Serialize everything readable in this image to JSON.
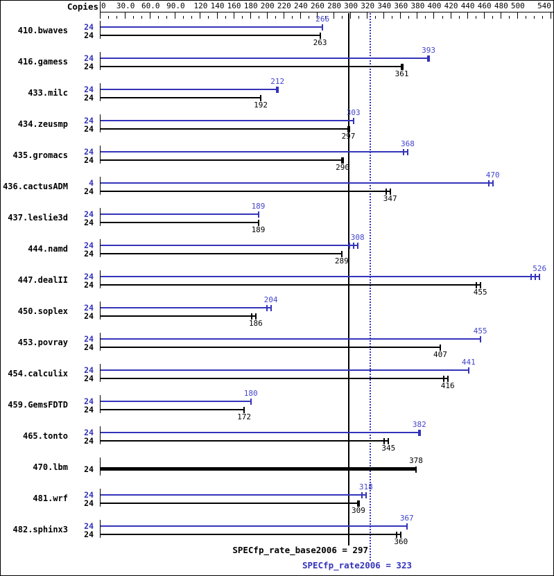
{
  "header": {
    "copies_label": "Copies"
  },
  "colors": {
    "peak": "#3333bb",
    "peak_text": "#4444cc",
    "base": "#000000",
    "background": "#ffffff"
  },
  "chart_data": {
    "type": "bar",
    "orientation": "horizontal",
    "title": "",
    "xlabel": "",
    "ylabel": "Copies",
    "x_axis": {
      "range": [
        0,
        543
      ],
      "minor_step": 10,
      "major_ticks": [
        30,
        60,
        90,
        120,
        140,
        160,
        180,
        200,
        220,
        240,
        260,
        280,
        300,
        320,
        340,
        360,
        380,
        400,
        420,
        440,
        460,
        480,
        500,
        540
      ],
      "labels": [
        {
          "v": 0,
          "t": "0"
        },
        {
          "v": 30,
          "t": "30.0"
        },
        {
          "v": 60,
          "t": "60.0"
        },
        {
          "v": 90,
          "t": "90.0"
        },
        {
          "v": 120,
          "t": "120"
        },
        {
          "v": 140,
          "t": "140"
        },
        {
          "v": 160,
          "t": "160"
        },
        {
          "v": 180,
          "t": "180"
        },
        {
          "v": 200,
          "t": "200"
        },
        {
          "v": 220,
          "t": "220"
        },
        {
          "v": 240,
          "t": "240"
        },
        {
          "v": 260,
          "t": "260"
        },
        {
          "v": 280,
          "t": "280"
        },
        {
          "v": 300,
          "t": "300"
        },
        {
          "v": 320,
          "t": "320"
        },
        {
          "v": 340,
          "t": "340"
        },
        {
          "v": 360,
          "t": "360"
        },
        {
          "v": 380,
          "t": "380"
        },
        {
          "v": 400,
          "t": "400"
        },
        {
          "v": 420,
          "t": "420"
        },
        {
          "v": 440,
          "t": "440"
        },
        {
          "v": 460,
          "t": "460"
        },
        {
          "v": 480,
          "t": "480"
        },
        {
          "v": 500,
          "t": "500"
        },
        {
          "v": 540,
          "t": "540"
        }
      ]
    },
    "series": [
      {
        "key": "peak",
        "color": "blue"
      },
      {
        "key": "base",
        "color": "black"
      }
    ],
    "benchmarks": [
      {
        "name": "410.bwaves",
        "peak": {
          "copies": 24,
          "value": 266,
          "marks": 1
        },
        "base": {
          "copies": 24,
          "value": 263,
          "marks": 1
        }
      },
      {
        "name": "416.gamess",
        "peak": {
          "copies": 24,
          "value": 393,
          "marks": 1,
          "thick": true
        },
        "base": {
          "copies": 24,
          "value": 361,
          "marks": 1,
          "thick": true
        }
      },
      {
        "name": "433.milc",
        "peak": {
          "copies": 24,
          "value": 212,
          "marks": 1,
          "thick": true
        },
        "base": {
          "copies": 24,
          "value": 192,
          "marks": 1
        }
      },
      {
        "name": "434.zeusmp",
        "peak": {
          "copies": 24,
          "value": 303,
          "marks": 1
        },
        "base": {
          "copies": 24,
          "value": 297,
          "marks": 1,
          "thick": true
        }
      },
      {
        "name": "435.gromacs",
        "peak": {
          "copies": 24,
          "value": 368,
          "marks": 2
        },
        "base": {
          "copies": 24,
          "value": 290,
          "marks": 1,
          "thick": true
        }
      },
      {
        "name": "436.cactusADM",
        "peak": {
          "copies": 4,
          "value": 470,
          "marks": 2
        },
        "base": {
          "copies": 24,
          "value": 347,
          "marks": 2
        }
      },
      {
        "name": "437.leslie3d",
        "peak": {
          "copies": 24,
          "value": 189,
          "marks": 1
        },
        "base": {
          "copies": 24,
          "value": 189,
          "marks": 1
        }
      },
      {
        "name": "444.namd",
        "peak": {
          "copies": 24,
          "value": 308,
          "marks": 3
        },
        "base": {
          "copies": 24,
          "value": 289,
          "marks": 1
        }
      },
      {
        "name": "447.dealII",
        "peak": {
          "copies": 24,
          "value": 526,
          "marks": 3
        },
        "base": {
          "copies": 24,
          "value": 455,
          "marks": 2
        }
      },
      {
        "name": "450.soplex",
        "peak": {
          "copies": 24,
          "value": 204,
          "marks": 2
        },
        "base": {
          "copies": 24,
          "value": 186,
          "marks": 2
        }
      },
      {
        "name": "453.povray",
        "peak": {
          "copies": 24,
          "value": 455,
          "marks": 1
        },
        "base": {
          "copies": 24,
          "value": 407,
          "marks": 1
        }
      },
      {
        "name": "454.calculix",
        "peak": {
          "copies": 24,
          "value": 441,
          "marks": 1
        },
        "base": {
          "copies": 24,
          "value": 416,
          "marks": 2
        }
      },
      {
        "name": "459.GemsFDTD",
        "peak": {
          "copies": 24,
          "value": 180,
          "marks": 1
        },
        "base": {
          "copies": 24,
          "value": 172,
          "marks": 1
        }
      },
      {
        "name": "465.tonto",
        "peak": {
          "copies": 24,
          "value": 382,
          "marks": 1,
          "thick": true
        },
        "base": {
          "copies": 24,
          "value": 345,
          "marks": 2
        }
      },
      {
        "name": "470.lbm",
        "single_bar": true,
        "base": {
          "copies": 24,
          "value": 378,
          "marks": 1
        }
      },
      {
        "name": "481.wrf",
        "peak": {
          "copies": 24,
          "value": 318,
          "marks": 2
        },
        "base": {
          "copies": 24,
          "value": 309,
          "marks": 1,
          "thick": true
        }
      },
      {
        "name": "482.sphinx3",
        "peak": {
          "copies": 24,
          "value": 367,
          "marks": 1
        },
        "base": {
          "copies": 24,
          "value": 360,
          "marks": 2
        }
      }
    ],
    "reference_lines": [
      {
        "value": 297,
        "style": "solid",
        "color": "black",
        "label": "SPECfp_rate_base2006 = 297"
      },
      {
        "value": 323,
        "style": "dotted",
        "color": "blue",
        "label": "SPECfp_rate2006 = 323"
      }
    ]
  }
}
